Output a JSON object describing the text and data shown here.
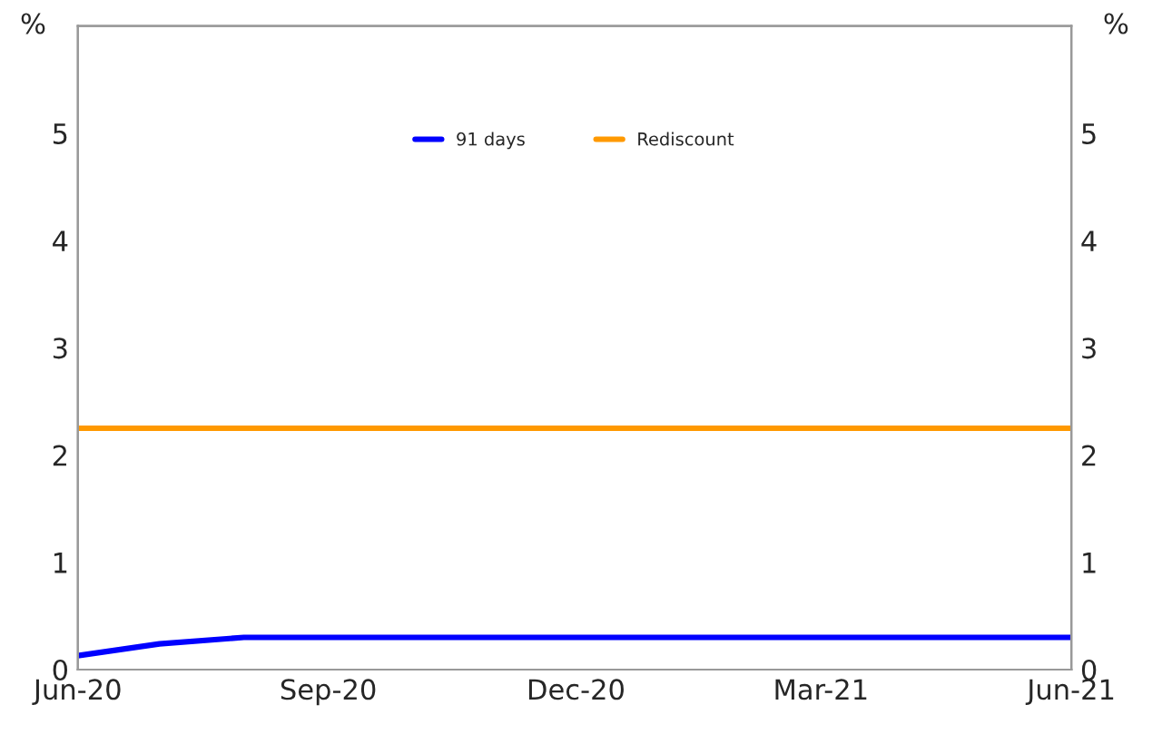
{
  "chart_data": {
    "type": "line",
    "ylabel": "%",
    "y2label": "%",
    "x": [
      "2020-06",
      "2020-07",
      "2020-08",
      "2020-09",
      "2020-10",
      "2020-11",
      "2020-12",
      "2021-01",
      "2021-02",
      "2021-03",
      "2021-04",
      "2021-05",
      "2021-06"
    ],
    "series": [
      {
        "name": "91 days",
        "color": "#0000ff",
        "values": [
          0.13,
          0.24,
          0.3,
          0.3,
          0.3,
          0.3,
          0.3,
          0.3,
          0.3,
          0.3,
          0.3,
          0.3,
          0.3
        ]
      },
      {
        "name": "Rediscount",
        "color": "#ff9900",
        "values": [
          2.25,
          2.25,
          2.25,
          2.25,
          2.25,
          2.25,
          2.25,
          2.25,
          2.25,
          2.25,
          2.25,
          2.25,
          2.25
        ]
      }
    ],
    "xlim": [
      "2020-06",
      "2021-06"
    ],
    "xticks": [
      {
        "value": "2020-06",
        "label": "Jun-20"
      },
      {
        "value": "2020-09",
        "label": "Sep-20"
      },
      {
        "value": "2020-12",
        "label": "Dec-20"
      },
      {
        "value": "2021-03",
        "label": "Mar-21"
      },
      {
        "value": "2021-06",
        "label": "Jun-21"
      }
    ],
    "ylim": [
      0,
      6
    ],
    "yticks": [
      0,
      1,
      2,
      3,
      4,
      5
    ],
    "y2lim": [
      0,
      6
    ],
    "y2ticks": [
      0,
      1,
      2,
      3,
      4,
      5
    ],
    "grid": false,
    "legend": "top",
    "marker": "none",
    "line_style": "solid"
  }
}
